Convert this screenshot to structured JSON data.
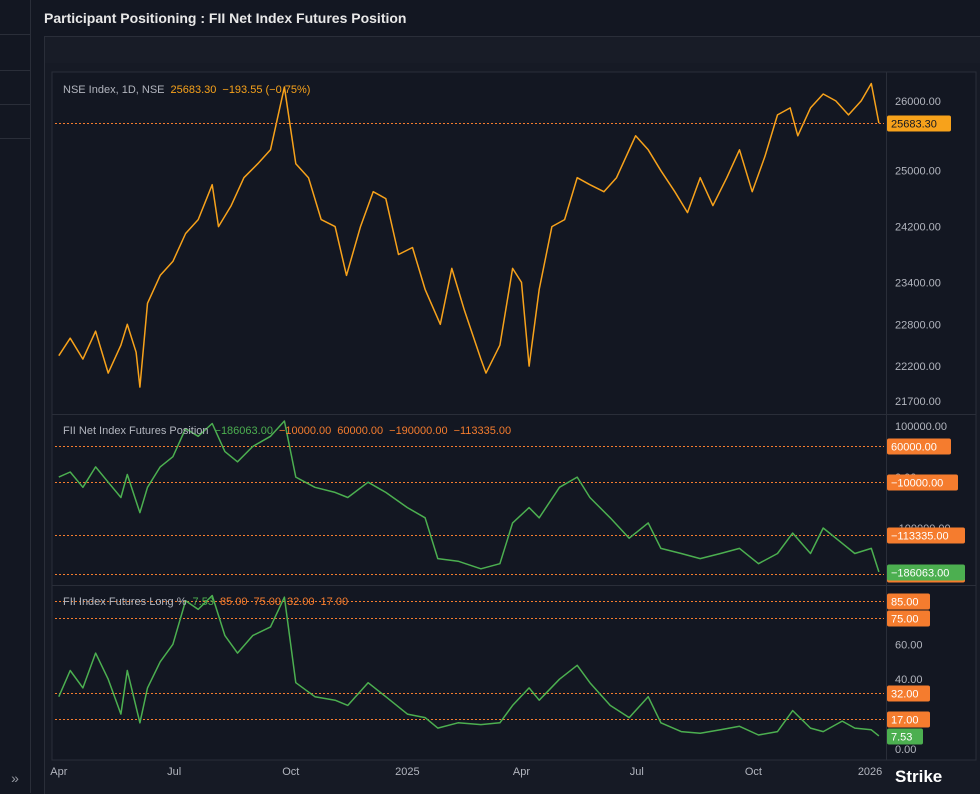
{
  "page_title": "Participant Positioning : FII Net Index Futures Position",
  "colors": {
    "background": "#131722",
    "index_line": "#f7a21b",
    "fii_line": "#4caf50",
    "ref_orange": "#f57c2e",
    "green_badge": "#4caf50",
    "grid": "#2a2e39"
  },
  "icons": {
    "expand": "double-chevron-right-icon",
    "logo": "strike-logo"
  },
  "sidebar": {
    "expand_label": "»"
  },
  "brand": {
    "logo_text": "Strike"
  },
  "chart_data": [
    {
      "type": "line",
      "legend": {
        "name": "NSE Index, 1D, NSE",
        "value": "25683.30",
        "change": "−193.55 (−0.75%)"
      },
      "y_ticks": [
        "26000.00",
        "25000.00",
        "24200.00",
        "23400.00",
        "22800.00",
        "22200.00",
        "21700.00"
      ],
      "last_value_label": "25683.30",
      "last_value": 25683.3,
      "x_labels": [
        "Apr",
        "Jul",
        "Oct",
        "2025",
        "Apr",
        "Jul",
        "Oct",
        "2026"
      ],
      "points": [
        [
          "2024-04-01",
          22350
        ],
        [
          "2024-04-10",
          22600
        ],
        [
          "2024-04-20",
          22300
        ],
        [
          "2024-04-30",
          22700
        ],
        [
          "2024-05-10",
          22100
        ],
        [
          "2024-05-20",
          22500
        ],
        [
          "2024-05-25",
          22800
        ],
        [
          "2024-06-01",
          22400
        ],
        [
          "2024-06-04",
          21900
        ],
        [
          "2024-06-10",
          23100
        ],
        [
          "2024-06-20",
          23500
        ],
        [
          "2024-06-30",
          23700
        ],
        [
          "2024-07-10",
          24100
        ],
        [
          "2024-07-20",
          24300
        ],
        [
          "2024-07-31",
          24800
        ],
        [
          "2024-08-05",
          24200
        ],
        [
          "2024-08-15",
          24500
        ],
        [
          "2024-08-25",
          24900
        ],
        [
          "2024-09-05",
          25100
        ],
        [
          "2024-09-15",
          25300
        ],
        [
          "2024-09-26",
          26200
        ],
        [
          "2024-10-05",
          25100
        ],
        [
          "2024-10-15",
          24900
        ],
        [
          "2024-10-25",
          24300
        ],
        [
          "2024-11-05",
          24200
        ],
        [
          "2024-11-14",
          23500
        ],
        [
          "2024-11-25",
          24200
        ],
        [
          "2024-12-05",
          24700
        ],
        [
          "2024-12-15",
          24600
        ],
        [
          "2024-12-25",
          23800
        ],
        [
          "2025-01-05",
          23900
        ],
        [
          "2025-01-15",
          23300
        ],
        [
          "2025-01-27",
          22800
        ],
        [
          "2025-02-05",
          23600
        ],
        [
          "2025-02-15",
          23000
        ],
        [
          "2025-02-28",
          22300
        ],
        [
          "2025-03-04",
          22100
        ],
        [
          "2025-03-15",
          22500
        ],
        [
          "2025-03-25",
          23600
        ],
        [
          "2025-04-01",
          23400
        ],
        [
          "2025-04-07",
          22200
        ],
        [
          "2025-04-15",
          23300
        ],
        [
          "2025-04-25",
          24200
        ],
        [
          "2025-05-05",
          24300
        ],
        [
          "2025-05-15",
          24900
        ],
        [
          "2025-05-25",
          24800
        ],
        [
          "2025-06-05",
          24700
        ],
        [
          "2025-06-15",
          24900
        ],
        [
          "2025-06-30",
          25500
        ],
        [
          "2025-07-10",
          25300
        ],
        [
          "2025-07-20",
          25000
        ],
        [
          "2025-07-31",
          24700
        ],
        [
          "2025-08-10",
          24400
        ],
        [
          "2025-08-20",
          24900
        ],
        [
          "2025-08-30",
          24500
        ],
        [
          "2025-09-10",
          24900
        ],
        [
          "2025-09-20",
          25300
        ],
        [
          "2025-09-30",
          24700
        ],
        [
          "2025-10-10",
          25200
        ],
        [
          "2025-10-20",
          25800
        ],
        [
          "2025-10-30",
          25900
        ],
        [
          "2025-11-05",
          25500
        ],
        [
          "2025-11-15",
          25900
        ],
        [
          "2025-11-25",
          26100
        ],
        [
          "2025-12-05",
          26000
        ],
        [
          "2025-12-15",
          25800
        ],
        [
          "2025-12-25",
          26000
        ],
        [
          "2026-01-02",
          26250
        ],
        [
          "2026-01-08",
          25683
        ]
      ]
    },
    {
      "type": "line",
      "legend": {
        "name": "FII Net Index Futures Position",
        "values": [
          "−186063.00",
          "−10000.00",
          "60000.00",
          "−190000.00",
          "−113335.00"
        ]
      },
      "y_ticks": [
        "100000.00",
        "0.00",
        "-100000.00"
      ],
      "ref_lines": [
        {
          "value": 60000,
          "label": "60000.00"
        },
        {
          "value": -10000,
          "label": "−10000.00"
        },
        {
          "value": -113335,
          "label": "−113335.00"
        },
        {
          "value": -190000,
          "label": "−190000.00"
        }
      ],
      "last_value_label": "−186063.00",
      "last_value": -186063,
      "points": [
        [
          "2024-04-01",
          0
        ],
        [
          "2024-04-10",
          10000
        ],
        [
          "2024-04-20",
          -20000
        ],
        [
          "2024-04-30",
          20000
        ],
        [
          "2024-05-10",
          -10000
        ],
        [
          "2024-05-20",
          -40000
        ],
        [
          "2024-05-25",
          5000
        ],
        [
          "2024-06-04",
          -70000
        ],
        [
          "2024-06-10",
          -20000
        ],
        [
          "2024-06-20",
          20000
        ],
        [
          "2024-06-30",
          40000
        ],
        [
          "2024-07-10",
          95000
        ],
        [
          "2024-07-20",
          80000
        ],
        [
          "2024-07-31",
          105000
        ],
        [
          "2024-08-10",
          50000
        ],
        [
          "2024-08-20",
          30000
        ],
        [
          "2024-09-01",
          60000
        ],
        [
          "2024-09-15",
          80000
        ],
        [
          "2024-09-26",
          110000
        ],
        [
          "2024-10-05",
          0
        ],
        [
          "2024-10-20",
          -20000
        ],
        [
          "2024-11-05",
          -30000
        ],
        [
          "2024-11-15",
          -40000
        ],
        [
          "2024-12-01",
          -10000
        ],
        [
          "2024-12-15",
          -30000
        ],
        [
          "2025-01-01",
          -60000
        ],
        [
          "2025-01-15",
          -80000
        ],
        [
          "2025-01-25",
          -160000
        ],
        [
          "2025-02-10",
          -165000
        ],
        [
          "2025-02-28",
          -180000
        ],
        [
          "2025-03-15",
          -170000
        ],
        [
          "2025-03-25",
          -90000
        ],
        [
          "2025-04-07",
          -60000
        ],
        [
          "2025-04-15",
          -80000
        ],
        [
          "2025-05-01",
          -20000
        ],
        [
          "2025-05-15",
          0
        ],
        [
          "2025-05-25",
          -40000
        ],
        [
          "2025-06-10",
          -80000
        ],
        [
          "2025-06-25",
          -120000
        ],
        [
          "2025-07-10",
          -90000
        ],
        [
          "2025-07-20",
          -140000
        ],
        [
          "2025-08-05",
          -150000
        ],
        [
          "2025-08-20",
          -160000
        ],
        [
          "2025-09-05",
          -150000
        ],
        [
          "2025-09-20",
          -140000
        ],
        [
          "2025-10-05",
          -170000
        ],
        [
          "2025-10-20",
          -150000
        ],
        [
          "2025-11-01",
          -110000
        ],
        [
          "2025-11-15",
          -150000
        ],
        [
          "2025-11-25",
          -100000
        ],
        [
          "2025-12-10",
          -130000
        ],
        [
          "2025-12-20",
          -150000
        ],
        [
          "2026-01-02",
          -140000
        ],
        [
          "2026-01-08",
          -186063
        ]
      ]
    },
    {
      "type": "line",
      "legend": {
        "name": "FII Index Futures Long %",
        "values": [
          "7.53",
          "85.00",
          "75.00",
          "32.00",
          "17.00"
        ]
      },
      "y_ticks": [
        "60.00",
        "40.00",
        "0.00"
      ],
      "ref_lines": [
        {
          "value": 85,
          "label": "85.00"
        },
        {
          "value": 75,
          "label": "75.00"
        },
        {
          "value": 32,
          "label": "32.00"
        },
        {
          "value": 17,
          "label": "17.00"
        }
      ],
      "last_value_label": "7.53",
      "last_value": 7.53,
      "points": [
        [
          "2024-04-01",
          30
        ],
        [
          "2024-04-10",
          45
        ],
        [
          "2024-04-20",
          35
        ],
        [
          "2024-04-30",
          55
        ],
        [
          "2024-05-10",
          40
        ],
        [
          "2024-05-20",
          20
        ],
        [
          "2024-05-25",
          45
        ],
        [
          "2024-06-04",
          15
        ],
        [
          "2024-06-10",
          35
        ],
        [
          "2024-06-20",
          50
        ],
        [
          "2024-06-30",
          60
        ],
        [
          "2024-07-10",
          85
        ],
        [
          "2024-07-20",
          80
        ],
        [
          "2024-07-31",
          88
        ],
        [
          "2024-08-10",
          65
        ],
        [
          "2024-08-20",
          55
        ],
        [
          "2024-09-01",
          65
        ],
        [
          "2024-09-15",
          70
        ],
        [
          "2024-09-26",
          87
        ],
        [
          "2024-10-05",
          38
        ],
        [
          "2024-10-20",
          30
        ],
        [
          "2024-11-05",
          28
        ],
        [
          "2024-11-15",
          25
        ],
        [
          "2024-12-01",
          38
        ],
        [
          "2024-12-15",
          30
        ],
        [
          "2025-01-01",
          20
        ],
        [
          "2025-01-15",
          18
        ],
        [
          "2025-01-25",
          12
        ],
        [
          "2025-02-10",
          15
        ],
        [
          "2025-02-28",
          14
        ],
        [
          "2025-03-15",
          15
        ],
        [
          "2025-03-25",
          25
        ],
        [
          "2025-04-07",
          35
        ],
        [
          "2025-04-15",
          28
        ],
        [
          "2025-05-01",
          40
        ],
        [
          "2025-05-15",
          48
        ],
        [
          "2025-05-25",
          38
        ],
        [
          "2025-06-10",
          25
        ],
        [
          "2025-06-25",
          18
        ],
        [
          "2025-07-10",
          30
        ],
        [
          "2025-07-20",
          15
        ],
        [
          "2025-08-05",
          10
        ],
        [
          "2025-08-20",
          9
        ],
        [
          "2025-09-05",
          11
        ],
        [
          "2025-09-20",
          13
        ],
        [
          "2025-10-05",
          8
        ],
        [
          "2025-10-20",
          10
        ],
        [
          "2025-11-01",
          22
        ],
        [
          "2025-11-15",
          12
        ],
        [
          "2025-11-25",
          10
        ],
        [
          "2025-12-10",
          16
        ],
        [
          "2025-12-20",
          12
        ],
        [
          "2026-01-02",
          11
        ],
        [
          "2026-01-08",
          7.53
        ]
      ]
    }
  ]
}
